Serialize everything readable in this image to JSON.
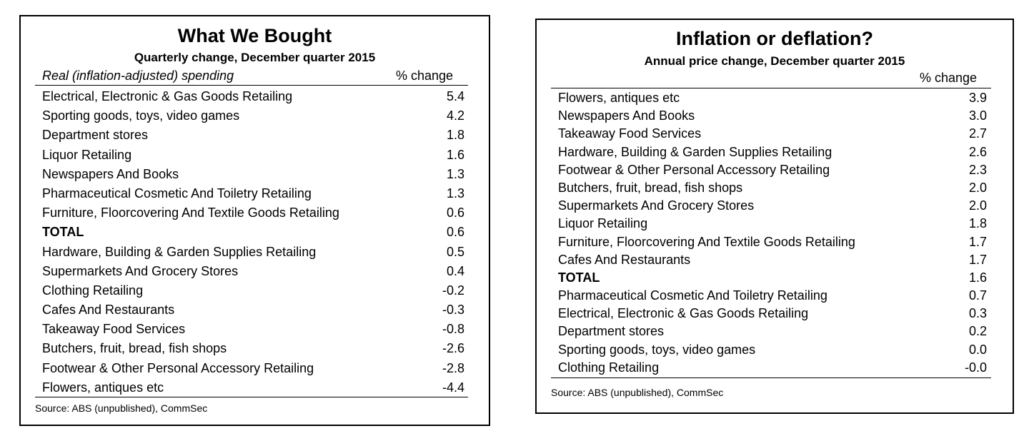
{
  "left_table": {
    "title": "What We Bought",
    "subtitle": "Quarterly change, December quarter 2015",
    "column_label": "Real (inflation-adjusted) spending",
    "column_value": "% change",
    "rows": [
      {
        "label": "Electrical, Electronic & Gas Goods Retailing",
        "value": "5.4",
        "total": false
      },
      {
        "label": "Sporting goods, toys, video games",
        "value": "4.2",
        "total": false
      },
      {
        "label": "Department stores",
        "value": "1.8",
        "total": false
      },
      {
        "label": "Liquor Retailing",
        "value": "1.6",
        "total": false
      },
      {
        "label": "Newspapers And Books",
        "value": "1.3",
        "total": false
      },
      {
        "label": "Pharmaceutical Cosmetic And Toiletry Retailing",
        "value": "1.3",
        "total": false
      },
      {
        "label": "Furniture, Floorcovering And Textile Goods Retailing",
        "value": "0.6",
        "total": false
      },
      {
        "label": "TOTAL",
        "value": "0.6",
        "total": true
      },
      {
        "label": "Hardware, Building & Garden Supplies Retailing",
        "value": "0.5",
        "total": false
      },
      {
        "label": "Supermarkets And Grocery Stores",
        "value": "0.4",
        "total": false
      },
      {
        "label": "Clothing Retailing",
        "value": "-0.2",
        "total": false
      },
      {
        "label": "Cafes And Restaurants",
        "value": "-0.3",
        "total": false
      },
      {
        "label": "Takeaway Food Services",
        "value": "-0.8",
        "total": false
      },
      {
        "label": "Butchers, fruit, bread, fish shops",
        "value": "-2.6",
        "total": false
      },
      {
        "label": "Footwear & Other Personal Accessory Retailing",
        "value": "-2.8",
        "total": false
      },
      {
        "label": "Flowers, antiques etc",
        "value": "-4.4",
        "total": false
      }
    ],
    "source": "Source: ABS (unpublished), CommSec"
  },
  "right_table": {
    "title": "Inflation or deflation?",
    "subtitle": "Annual price change, December quarter 2015",
    "column_value": "% change",
    "rows": [
      {
        "label": "Flowers, antiques etc",
        "value": "3.9",
        "total": false
      },
      {
        "label": "Newspapers And Books",
        "value": "3.0",
        "total": false
      },
      {
        "label": "Takeaway Food Services",
        "value": "2.7",
        "total": false
      },
      {
        "label": "Hardware, Building & Garden Supplies Retailing",
        "value": "2.6",
        "total": false
      },
      {
        "label": "Footwear & Other Personal Accessory Retailing",
        "value": "2.3",
        "total": false
      },
      {
        "label": "Butchers, fruit, bread, fish shops",
        "value": "2.0",
        "total": false
      },
      {
        "label": "Supermarkets And Grocery Stores",
        "value": "2.0",
        "total": false
      },
      {
        "label": "Liquor Retailing",
        "value": "1.8",
        "total": false
      },
      {
        "label": "Furniture, Floorcovering And Textile Goods Retailing",
        "value": "1.7",
        "total": false
      },
      {
        "label": "Cafes And Restaurants",
        "value": "1.7",
        "total": false
      },
      {
        "label": "TOTAL",
        "value": "1.6",
        "total": true
      },
      {
        "label": "Pharmaceutical Cosmetic And Toiletry Retailing",
        "value": "0.7",
        "total": false
      },
      {
        "label": "Electrical, Electronic & Gas Goods Retailing",
        "value": "0.3",
        "total": false
      },
      {
        "label": "Department stores",
        "value": "0.2",
        "total": false
      },
      {
        "label": "Sporting goods, toys, video games",
        "value": "0.0",
        "total": false
      },
      {
        "label": "Clothing Retailing",
        "value": "-0.0",
        "total": false
      }
    ],
    "source": "Source: ABS (unpublished), CommSec"
  }
}
